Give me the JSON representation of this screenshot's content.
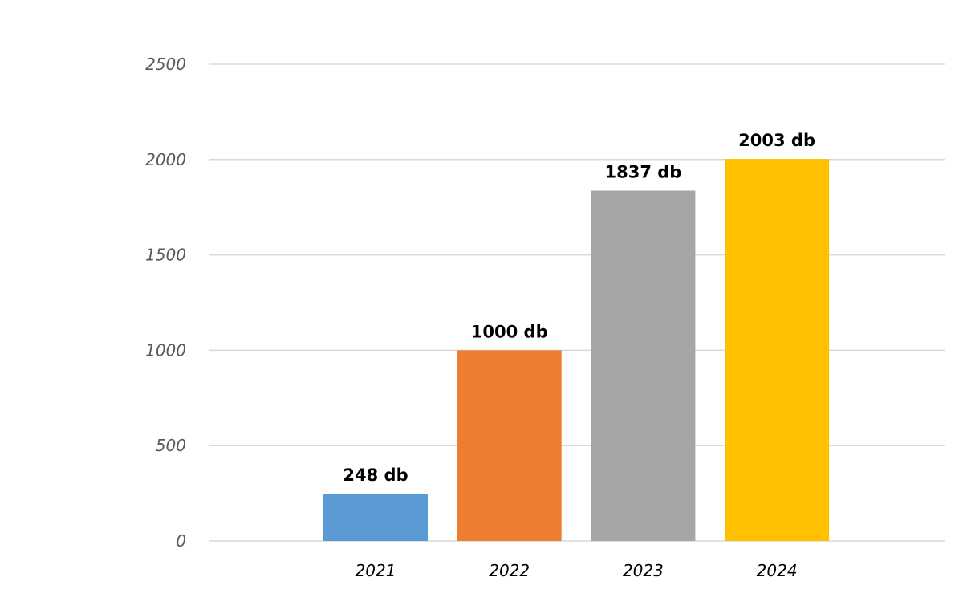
{
  "chart_data": {
    "type": "bar",
    "title": "",
    "xlabel": "",
    "ylabel": "",
    "categories": [
      "2021",
      "2022",
      "2023",
      "2024"
    ],
    "values": [
      248,
      1000,
      1837,
      2003
    ],
    "data_labels": [
      "248 db",
      "1000 db",
      "1837 db",
      "2003 db"
    ],
    "colors": [
      "#5B9BD5",
      "#ED7D31",
      "#A5A5A5",
      "#FFC000"
    ],
    "ylim": [
      0,
      2500
    ],
    "yticks": [
      0,
      500,
      1000,
      1500,
      2000,
      2500
    ],
    "ytick_labels": [
      "0",
      "500",
      "1000",
      "1500",
      "2000",
      "2500"
    ],
    "grid": true,
    "legend": "none"
  }
}
